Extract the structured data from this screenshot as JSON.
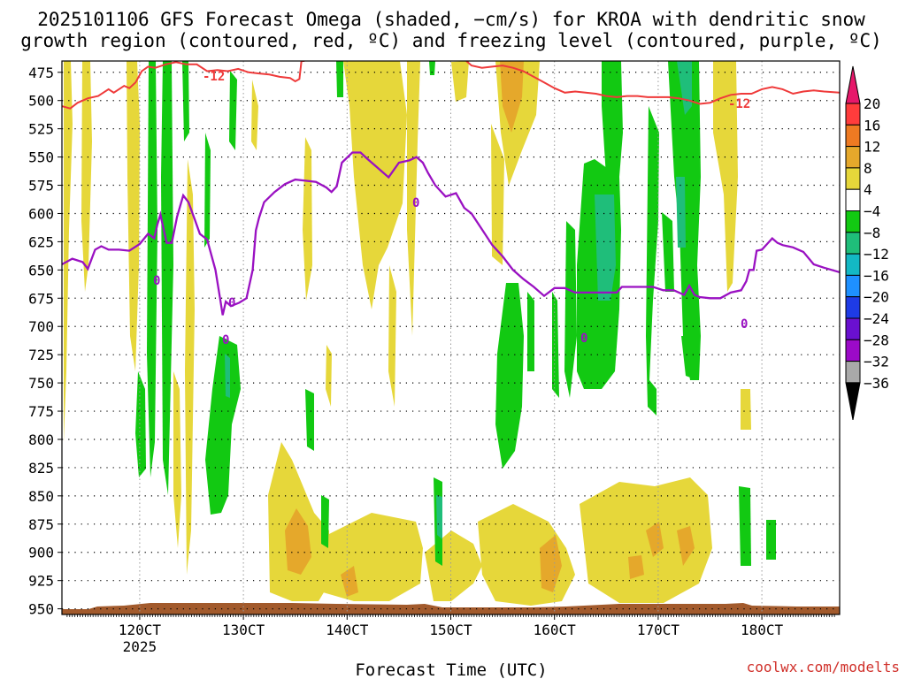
{
  "chart_data": {
    "type": "heatmap",
    "title_lines": [
      "2025101106 GFS Forecast Omega (shaded, −cm/s) for KROA with dendritic snow",
      "growth region (contoured, red, ºC) and freezing level (contoured, purple, ºC)"
    ],
    "xlabel": "Forecast Time (UTC)",
    "credit": "coolwx.com/modelts",
    "x_domain": [
      112.5,
      187.5
    ],
    "y_domain": [
      465,
      955
    ],
    "y_ticks": [
      475,
      500,
      525,
      550,
      575,
      600,
      625,
      650,
      675,
      700,
      725,
      750,
      775,
      800,
      825,
      850,
      875,
      900,
      925,
      950
    ],
    "x_ticks": [
      {
        "x": 120,
        "label": "120CT",
        "sub": "2025"
      },
      {
        "x": 130,
        "label": "130CT",
        "sub": ""
      },
      {
        "x": 140,
        "label": "140CT",
        "sub": ""
      },
      {
        "x": 150,
        "label": "150CT",
        "sub": ""
      },
      {
        "x": 160,
        "label": "160CT",
        "sub": ""
      },
      {
        "x": 170,
        "label": "170CT",
        "sub": ""
      },
      {
        "x": 180,
        "label": "180CT",
        "sub": ""
      }
    ],
    "colorbar": {
      "labels": [
        "20",
        "16",
        "12",
        "8",
        "4",
        "−4",
        "−8",
        "−12",
        "−16",
        "−20",
        "−24",
        "−28",
        "−32",
        "−36"
      ],
      "colors": [
        "#ff3c3c",
        "#ee7a22",
        "#e5a82b",
        "#e6d73a",
        "#ffffff",
        "#12c912",
        "#1fbe7a",
        "#13b8c4",
        "#1e90ff",
        "#1e3be6",
        "#6a10d0",
        "#9c0ac8",
        "#a9a9a9"
      ],
      "top_arrow_color": "#e6186a",
      "bottom_arrow_color": "#000000"
    },
    "freezing_level": {
      "contour_label": "0",
      "color": "#9a11c2",
      "x": [
        112.5,
        113.5,
        114.5,
        115.0,
        115.7,
        116.3,
        117.0,
        118.0,
        119.0,
        120.0,
        120.8,
        121.4,
        121.7,
        122.0,
        122.6,
        123.1,
        123.6,
        124.2,
        124.7,
        125.3,
        125.8,
        126.5,
        127.3,
        127.8,
        128.0,
        128.3,
        128.8,
        129.6,
        130.3,
        130.9,
        131.2,
        131.5,
        132.0,
        133.0,
        134.0,
        135.0,
        136.0,
        137.0,
        138.0,
        138.5,
        139.0,
        139.5,
        140.5,
        141.3,
        142.0,
        143.0,
        144.0,
        145.0,
        146.0,
        146.7,
        147.3,
        147.8,
        148.5,
        149.5,
        150.5,
        151.3,
        152.0,
        153.0,
        154.0,
        155.0,
        156.0,
        157.0,
        158.0,
        159.0,
        160.0,
        161.0,
        162.0,
        163.0,
        164.0,
        165.0,
        166.0,
        166.5,
        167.5,
        168.5,
        169.5,
        170.5,
        171.5,
        172.5,
        173.0,
        173.5,
        174.0,
        175.0,
        176.0,
        177.0,
        178.0,
        178.5,
        178.8,
        179.2,
        179.5,
        180.0,
        180.5,
        181.0,
        181.5,
        182.0,
        183.0,
        184.0,
        185.0,
        186.0,
        187.5
      ],
      "y": [
        645,
        640,
        643,
        649,
        632,
        629,
        632,
        632,
        633,
        627,
        618,
        622,
        610,
        601,
        626,
        626,
        603,
        584,
        590,
        605,
        618,
        623,
        650,
        678,
        690,
        678,
        682,
        679,
        675,
        650,
        615,
        604,
        590,
        581,
        574,
        570,
        571,
        572,
        577,
        581,
        576,
        555,
        546,
        546,
        552,
        560,
        568,
        555,
        553,
        550,
        555,
        564,
        575,
        585,
        582,
        595,
        600,
        614,
        628,
        638,
        650,
        658,
        665,
        673,
        666,
        666,
        670,
        670,
        670,
        670,
        670,
        665,
        665,
        665,
        665,
        668,
        668,
        672,
        664,
        672,
        674,
        675,
        675,
        670,
        668,
        660,
        650,
        650,
        633,
        632,
        627,
        622,
        626,
        628,
        630,
        634,
        645,
        648,
        652,
        652,
        652
      ]
    },
    "dgz_minus12": {
      "contour_label": "-12",
      "color": "#ef3a3a",
      "x": [
        112.5,
        113.3,
        114.0,
        115.0,
        116.0,
        117.0,
        117.5,
        118.0,
        118.5,
        119.0,
        119.6,
        120.2,
        120.8,
        121.5,
        122.5,
        123.5,
        124.5,
        125.5,
        126.5,
        127.5,
        128.5,
        129.5,
        130.5,
        131.5,
        132.5,
        133.5,
        134.5,
        135.0,
        135.4,
        135.6,
        135.9
      ],
      "y": [
        505,
        507,
        502,
        498,
        496,
        490,
        493,
        490,
        487,
        489,
        484,
        474,
        470,
        471,
        468,
        466,
        468,
        468,
        474,
        473,
        474,
        472,
        475,
        476,
        477,
        479,
        480,
        483,
        481,
        465,
        465
      ],
      "x2": [
        151.5,
        152.0,
        153.0,
        154.0,
        155.0,
        156.0,
        157.0,
        158.0,
        159.0,
        160.0,
        161.0,
        162.0,
        163.0,
        164.0,
        165.0,
        166.0,
        167.0,
        168.0,
        169.0,
        170.0,
        171.0,
        172.0,
        173.0,
        174.0,
        175.0,
        176.0,
        177.0,
        178.0,
        179.0,
        180.0,
        181.0,
        182.0,
        183.0,
        184.0,
        185.0,
        186.0,
        187.5
      ],
      "y2": [
        465,
        469,
        471,
        470,
        469,
        471,
        474,
        479,
        484,
        489,
        493,
        492,
        493,
        494,
        496,
        497,
        496,
        496,
        497,
        497,
        497,
        498,
        500,
        503,
        502,
        498,
        495,
        494,
        494,
        490,
        488,
        490,
        494,
        492,
        491,
        492,
        493
      ]
    }
  }
}
